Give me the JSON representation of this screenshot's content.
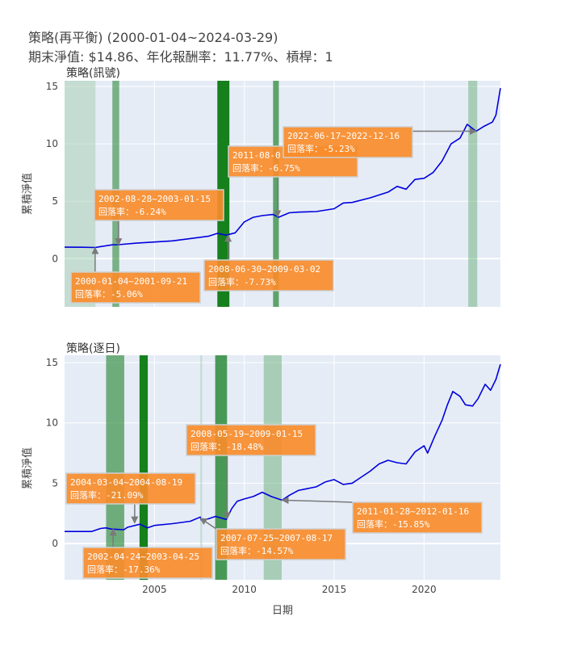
{
  "header": {
    "title_line1": "策略(再平衡) (2000-01-04~2024-03-29)",
    "title_line2": "期末淨值: $14.86、年化報酬率：11.77%、槓桿：1"
  },
  "chart_data": [
    {
      "type": "line",
      "subtitle": "策略(訊號)",
      "xlabel": "",
      "ylabel": "累積淨值",
      "x_range": [
        2000.0,
        2024.25
      ],
      "ylim": [
        -4.2,
        15.5
      ],
      "y_ticks": [
        0,
        5,
        10,
        15
      ],
      "x_ticks": [
        2005,
        2010,
        2015,
        2020
      ],
      "show_x_tick_labels": false,
      "grid": true,
      "series": [
        {
          "color": "#0000dd",
          "points": [
            [
              2000.0,
              1.0
            ],
            [
              2001.0,
              0.99
            ],
            [
              2001.7,
              0.97
            ],
            [
              2002.0,
              1.05
            ],
            [
              2002.65,
              1.2
            ],
            [
              2003.0,
              1.22
            ],
            [
              2004.0,
              1.35
            ],
            [
              2005.0,
              1.45
            ],
            [
              2006.0,
              1.55
            ],
            [
              2007.0,
              1.75
            ],
            [
              2008.0,
              1.95
            ],
            [
              2008.5,
              2.2
            ],
            [
              2009.0,
              2.05
            ],
            [
              2009.5,
              2.25
            ],
            [
              2010.0,
              3.2
            ],
            [
              2010.5,
              3.6
            ],
            [
              2011.0,
              3.75
            ],
            [
              2011.6,
              3.85
            ],
            [
              2011.9,
              3.6
            ],
            [
              2012.5,
              4.0
            ],
            [
              2013.0,
              4.05
            ],
            [
              2014.0,
              4.1
            ],
            [
              2015.0,
              4.35
            ],
            [
              2015.5,
              4.85
            ],
            [
              2016.0,
              4.9
            ],
            [
              2017.0,
              5.3
            ],
            [
              2018.0,
              5.8
            ],
            [
              2018.5,
              6.3
            ],
            [
              2019.0,
              6.05
            ],
            [
              2019.5,
              6.9
            ],
            [
              2020.0,
              7.0
            ],
            [
              2020.5,
              7.5
            ],
            [
              2021.0,
              8.5
            ],
            [
              2021.5,
              10.0
            ],
            [
              2022.0,
              10.5
            ],
            [
              2022.4,
              11.7
            ],
            [
              2022.9,
              11.1
            ],
            [
              2023.3,
              11.5
            ],
            [
              2023.8,
              11.9
            ],
            [
              2024.0,
              12.5
            ],
            [
              2024.25,
              14.86
            ]
          ]
        }
      ],
      "bands": [
        {
          "x0": 2000.0,
          "x1": 2001.72,
          "color": "#9ccaa6",
          "opacity": 0.45
        },
        {
          "x0": 2002.66,
          "x1": 2003.04,
          "color": "#2e8b3a",
          "opacity": 0.6
        },
        {
          "x0": 2008.5,
          "x1": 2009.17,
          "color": "#0a7a10",
          "opacity": 0.95
        },
        {
          "x0": 2011.6,
          "x1": 2011.92,
          "color": "#2e8b3a",
          "opacity": 0.75
        },
        {
          "x0": 2022.46,
          "x1": 2022.96,
          "color": "#5aa86a",
          "opacity": 0.45
        }
      ],
      "annotations": [
        {
          "line1": "2000-01-04~2001-09-21",
          "line2": "回落率：-5.06%",
          "ax": 2001.7,
          "ay": 0.97
        },
        {
          "line1": "2002-08-28~2003-01-15",
          "line2": "回落率：-6.24%",
          "ax": 2003.0,
          "ay": 1.2
        },
        {
          "line1": "2008-06-30~2009-03-02",
          "line2": "回落率：-7.73%",
          "ax": 2009.1,
          "ay": 2.05
        },
        {
          "line1": "2011-08-0",
          "line2": "回落率：-6.75%",
          "ax": 2011.85,
          "ay": 3.65
        },
        {
          "line1": "2022-06-17~2022-12-16",
          "line2": "回落率：-5.23%",
          "ax": 2022.9,
          "ay": 11.1
        }
      ]
    },
    {
      "type": "line",
      "subtitle": "策略(逐日)",
      "xlabel": "日期",
      "ylabel": "累積淨值",
      "x_range": [
        2000.0,
        2024.25
      ],
      "ylim": [
        -3.0,
        15.6
      ],
      "y_ticks": [
        0,
        5,
        10,
        15
      ],
      "x_ticks": [
        2005,
        2010,
        2015,
        2020
      ],
      "show_x_tick_labels": true,
      "grid": true,
      "series": [
        {
          "color": "#0000dd",
          "points": [
            [
              2000.0,
              1.0
            ],
            [
              2001.5,
              1.0
            ],
            [
              2002.0,
              1.25
            ],
            [
              2002.3,
              1.3
            ],
            [
              2002.6,
              1.2
            ],
            [
              2003.3,
              1.15
            ],
            [
              2003.5,
              1.35
            ],
            [
              2004.2,
              1.6
            ],
            [
              2004.6,
              1.3
            ],
            [
              2005.0,
              1.5
            ],
            [
              2006.0,
              1.65
            ],
            [
              2007.0,
              1.85
            ],
            [
              2007.55,
              2.2
            ],
            [
              2007.6,
              1.95
            ],
            [
              2008.0,
              2.05
            ],
            [
              2008.4,
              2.25
            ],
            [
              2009.0,
              2.0
            ],
            [
              2009.3,
              2.9
            ],
            [
              2009.6,
              3.5
            ],
            [
              2010.0,
              3.7
            ],
            [
              2010.5,
              3.9
            ],
            [
              2011.0,
              4.25
            ],
            [
              2011.5,
              3.9
            ],
            [
              2012.1,
              3.6
            ],
            [
              2012.5,
              4.0
            ],
            [
              2013.0,
              4.4
            ],
            [
              2014.0,
              4.7
            ],
            [
              2014.5,
              5.1
            ],
            [
              2015.0,
              5.3
            ],
            [
              2015.5,
              4.9
            ],
            [
              2016.0,
              5.0
            ],
            [
              2016.5,
              5.5
            ],
            [
              2017.0,
              6.0
            ],
            [
              2017.5,
              6.6
            ],
            [
              2018.0,
              6.9
            ],
            [
              2018.5,
              6.7
            ],
            [
              2019.0,
              6.6
            ],
            [
              2019.5,
              7.6
            ],
            [
              2020.0,
              8.1
            ],
            [
              2020.2,
              7.5
            ],
            [
              2020.6,
              8.9
            ],
            [
              2021.0,
              10.2
            ],
            [
              2021.3,
              11.5
            ],
            [
              2021.6,
              12.6
            ],
            [
              2022.0,
              12.2
            ],
            [
              2022.3,
              11.5
            ],
            [
              2022.7,
              11.4
            ],
            [
              2023.0,
              12.0
            ],
            [
              2023.4,
              13.2
            ],
            [
              2023.7,
              12.7
            ],
            [
              2024.0,
              13.6
            ],
            [
              2024.25,
              14.86
            ]
          ]
        }
      ],
      "bands": [
        {
          "x0": 2002.31,
          "x1": 2003.32,
          "color": "#2e8b3a",
          "opacity": 0.65
        },
        {
          "x0": 2004.17,
          "x1": 2004.63,
          "color": "#0a7a10",
          "opacity": 0.95
        },
        {
          "x0": 2007.56,
          "x1": 2007.65,
          "color": "#9ccaa6",
          "opacity": 0.5
        },
        {
          "x0": 2008.38,
          "x1": 2009.04,
          "color": "#2e8b3a",
          "opacity": 0.85
        },
        {
          "x0": 2011.08,
          "x1": 2012.08,
          "color": "#5aa86a",
          "opacity": 0.45
        }
      ],
      "annotations": [
        {
          "line1": "2004-03-04~2004-08-19",
          "line2": "回落率：-21.09%",
          "ax": 2003.9,
          "ay": 1.7
        },
        {
          "line1": "2002-04-24~2003-04-25",
          "line2": "回落率：-17.36%",
          "ax": 2002.7,
          "ay": 1.2
        },
        {
          "line1": "2008-05-19~2009-01-15",
          "line2": "回落率：-18.48%",
          "ax": 2009.05,
          "ay": 2.05
        },
        {
          "line1": "2007-07-25~2007-08-17",
          "line2": "回落率：-14.57%",
          "ax": 2007.55,
          "ay": 2.1
        },
        {
          "line1": "2011-01-28~2012-01-16",
          "line2": "回落率：-15.85%",
          "ax": 2012.1,
          "ay": 3.6
        }
      ]
    }
  ]
}
